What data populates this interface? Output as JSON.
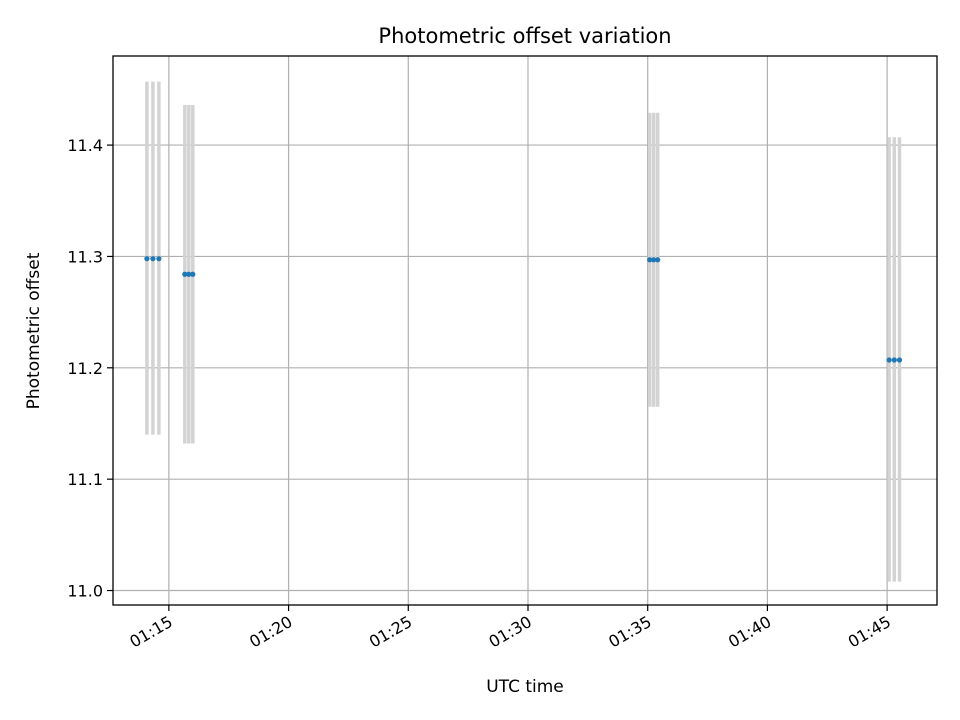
{
  "chart_data": {
    "type": "scatter",
    "title": "Photometric offset variation",
    "xlabel": "UTC time",
    "ylabel": "Photometric offset",
    "x_ticks": [
      "01:15",
      "01:20",
      "01:25",
      "01:30",
      "01:35",
      "01:40",
      "01:45"
    ],
    "y_ticks": [
      "11.0",
      "11.1",
      "11.2",
      "11.3",
      "11.4"
    ],
    "xlim": [
      "01:12:40",
      "01:47:05"
    ],
    "ylim": [
      10.987,
      11.48
    ],
    "grid": true,
    "colors": {
      "point": "#1f77b4",
      "error_bar": "#d3d3d3",
      "grid": "#b0b0b0",
      "axes": "#000000"
    },
    "series": [
      {
        "x": [
          "01:14:05",
          "01:14:20",
          "01:14:35",
          "01:15:40",
          "01:15:50",
          "01:16:00",
          "01:35:05",
          "01:35:15",
          "01:35:25",
          "01:45:05",
          "01:45:18",
          "01:45:31"
        ],
        "y": [
          11.298,
          11.298,
          11.298,
          11.284,
          11.284,
          11.284,
          11.297,
          11.297,
          11.297,
          11.207,
          11.207,
          11.207
        ],
        "err_low": [
          11.14,
          11.14,
          11.14,
          11.132,
          11.132,
          11.132,
          11.165,
          11.165,
          11.165,
          11.008,
          11.008,
          11.008
        ],
        "err_high": [
          11.457,
          11.457,
          11.457,
          11.436,
          11.436,
          11.436,
          11.429,
          11.429,
          11.429,
          11.407,
          11.407,
          11.407
        ]
      }
    ]
  }
}
